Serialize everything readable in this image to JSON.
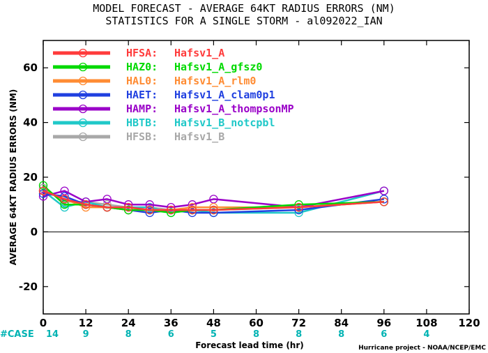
{
  "title_line1": "MODEL FORECAST - AVERAGE 64KT RADIUS ERRORS (NM)",
  "title_line2": "STATISTICS FOR A SINGLE STORM - al092022_IAN",
  "credit": "Hurricane project - NOAA/NCEP/EMC",
  "case_label": "#CASE",
  "chart_data": {
    "type": "line",
    "xlabel": "Forecast lead time (hr)",
    "ylabel": "AVERAGE 64KT RADIUS ERRORS (NM)",
    "xlim": [
      0,
      120
    ],
    "ylim": [
      -30,
      70
    ],
    "xticks": [
      0,
      12,
      24,
      36,
      48,
      60,
      72,
      84,
      96,
      108,
      120
    ],
    "yticks": [
      -20,
      0,
      20,
      40,
      60
    ],
    "zero_line": true,
    "legend_position": "top-left",
    "case_counts": [
      {
        "x": 0,
        "n": "14"
      },
      {
        "x": 12,
        "n": "9"
      },
      {
        "x": 24,
        "n": "8"
      },
      {
        "x": 36,
        "n": "6"
      },
      {
        "x": 48,
        "n": "5"
      },
      {
        "x": 60,
        "n": "8"
      },
      {
        "x": 72,
        "n": "8"
      },
      {
        "x": 84,
        "n": "8"
      },
      {
        "x": 96,
        "n": "6"
      },
      {
        "x": 108,
        "n": "4"
      }
    ],
    "series": [
      {
        "label": "HFSA:",
        "name": "Hafsv1_A",
        "color": "#ff3b3b",
        "points": [
          [
            0,
            15
          ],
          [
            6,
            12
          ],
          [
            12,
            10
          ],
          [
            18,
            9
          ],
          [
            24,
            9
          ],
          [
            30,
            8
          ],
          [
            36,
            8
          ],
          [
            42,
            8
          ],
          [
            48,
            8
          ],
          [
            72,
            9
          ],
          [
            96,
            11
          ]
        ]
      },
      {
        "label": "HAZ0:",
        "name": "Hafsv1_A_gfsz0",
        "color": "#00d900",
        "points": [
          [
            0,
            17
          ],
          [
            6,
            10
          ],
          [
            12,
            10
          ],
          [
            18,
            9
          ],
          [
            24,
            8
          ],
          [
            30,
            8
          ],
          [
            36,
            7
          ],
          [
            42,
            8
          ],
          [
            48,
            8
          ],
          [
            72,
            10
          ],
          [
            96,
            11
          ]
        ]
      },
      {
        "label": "HAL0:",
        "name": "Hafsv1_A_rlm0",
        "color": "#ff8c33",
        "points": [
          [
            0,
            15
          ],
          [
            6,
            12
          ],
          [
            12,
            9
          ],
          [
            18,
            9
          ],
          [
            24,
            8
          ],
          [
            30,
            8
          ],
          [
            36,
            8
          ],
          [
            42,
            9
          ],
          [
            48,
            9
          ],
          [
            72,
            9
          ],
          [
            96,
            11
          ]
        ]
      },
      {
        "label": "HAET:",
        "name": "Hafsv1_A_clam0p1",
        "color": "#2040e0",
        "points": [
          [
            0,
            14
          ],
          [
            6,
            13
          ],
          [
            12,
            10
          ],
          [
            18,
            9
          ],
          [
            24,
            8
          ],
          [
            30,
            7
          ],
          [
            36,
            8
          ],
          [
            42,
            7
          ],
          [
            48,
            7
          ],
          [
            72,
            8
          ],
          [
            96,
            12
          ]
        ]
      },
      {
        "label": "HAMP:",
        "name": "Hafsv1_A_thompsonMP",
        "color": "#9a00c8",
        "points": [
          [
            0,
            13
          ],
          [
            6,
            15
          ],
          [
            12,
            11
          ],
          [
            18,
            12
          ],
          [
            24,
            10
          ],
          [
            30,
            10
          ],
          [
            36,
            9
          ],
          [
            42,
            10
          ],
          [
            48,
            12
          ],
          [
            72,
            9
          ],
          [
            96,
            15
          ]
        ]
      },
      {
        "label": "HBTB:",
        "name": "Hafsv1_B_notcpbl",
        "color": "#20c8c8",
        "points": [
          [
            0,
            15
          ],
          [
            6,
            9
          ],
          [
            12,
            11
          ],
          [
            18,
            9
          ],
          [
            24,
            9
          ],
          [
            30,
            9
          ],
          [
            36,
            7
          ],
          [
            42,
            8
          ],
          [
            48,
            7
          ],
          [
            72,
            7
          ],
          [
            96,
            15
          ]
        ]
      },
      {
        "label": "HFSB:",
        "name": "Hafsv1_B",
        "color": "#a8a8a8",
        "points": [
          [
            0,
            16
          ],
          [
            6,
            11
          ],
          [
            12,
            11
          ],
          [
            18,
            10
          ],
          [
            24,
            9
          ],
          [
            30,
            9
          ],
          [
            36,
            8
          ],
          [
            42,
            8
          ],
          [
            48,
            8
          ],
          [
            72,
            9
          ],
          [
            96,
            11
          ]
        ]
      }
    ]
  }
}
